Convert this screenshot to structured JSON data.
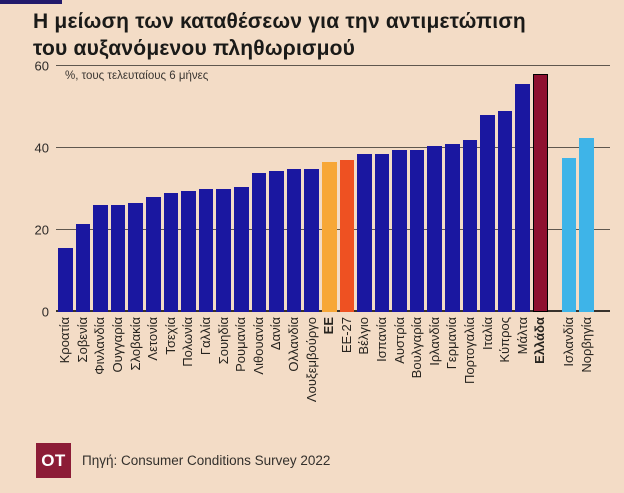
{
  "title": {
    "line1": "Η μείωση των καταθέσεων για την αντιμετώπιση",
    "line2": "του αυξανόμενου πληθωρισμού"
  },
  "chart_data": {
    "type": "bar",
    "subtitle": "%, τους τελευταίους 6 μήνες",
    "ylim": [
      0,
      60
    ],
    "yticks": [
      0,
      20,
      40,
      60
    ],
    "grid": true,
    "colors": {
      "eu-member": "#1a17a0",
      "eu-aggregate": "#f7a737",
      "eu27-aggregate": "#ee5122",
      "greece": "#8e1030",
      "non-eu": "#3eb4e8"
    },
    "greece_outline_color": "#000000",
    "bars": [
      {
        "label": "Κροατία",
        "value": 15.5,
        "group": "eu-member"
      },
      {
        "label": "Σοβενία",
        "value": 21.5,
        "group": "eu-member"
      },
      {
        "label": "Φινλανδία",
        "value": 26,
        "group": "eu-member"
      },
      {
        "label": "Ουγγαρία",
        "value": 26,
        "group": "eu-member"
      },
      {
        "label": "Σλοβακία",
        "value": 26.5,
        "group": "eu-member"
      },
      {
        "label": "Λετονία",
        "value": 28,
        "group": "eu-member"
      },
      {
        "label": "Τσεχία",
        "value": 29,
        "group": "eu-member"
      },
      {
        "label": "Πολωνία",
        "value": 29.5,
        "group": "eu-member"
      },
      {
        "label": "Γαλλία",
        "value": 30,
        "group": "eu-member"
      },
      {
        "label": "Σουηδία",
        "value": 30,
        "group": "eu-member"
      },
      {
        "label": "Ρουμανία",
        "value": 30.5,
        "group": "eu-member"
      },
      {
        "label": "Λιθουανία",
        "value": 34,
        "group": "eu-member"
      },
      {
        "label": "Δανία",
        "value": 34.5,
        "group": "eu-member"
      },
      {
        "label": "Ολλανδία",
        "value": 35,
        "group": "eu-member"
      },
      {
        "label": "Λουξεμβούργο",
        "value": 35,
        "group": "eu-member"
      },
      {
        "label": "ΕΕ",
        "value": 36.5,
        "group": "eu-aggregate",
        "bold": true
      },
      {
        "label": "ΕΕ-27",
        "value": 37,
        "group": "eu27-aggregate"
      },
      {
        "label": "Βέλγιο",
        "value": 38.5,
        "group": "eu-member"
      },
      {
        "label": "Ισπανία",
        "value": 38.5,
        "group": "eu-member"
      },
      {
        "label": "Αυστρία",
        "value": 39.5,
        "group": "eu-member"
      },
      {
        "label": "Βουλγαρία",
        "value": 39.5,
        "group": "eu-member"
      },
      {
        "label": "Ιρλανδία",
        "value": 40.5,
        "group": "eu-member"
      },
      {
        "label": "Γερμανία",
        "value": 41,
        "group": "eu-member"
      },
      {
        "label": "Πορτογαλία",
        "value": 42,
        "group": "eu-member"
      },
      {
        "label": "Ιταλία",
        "value": 48,
        "group": "eu-member"
      },
      {
        "label": "Κύπρος",
        "value": 49,
        "group": "eu-member"
      },
      {
        "label": "Μάλτα",
        "value": 55.5,
        "group": "eu-member"
      },
      {
        "label": "Ελλάδα",
        "value": 58,
        "group": "greece",
        "bold": true
      },
      {
        "label": "Ισλανδία",
        "value": 37.5,
        "group": "non-eu",
        "gap_before": true
      },
      {
        "label": "Νορβηγία",
        "value": 42.5,
        "group": "non-eu"
      }
    ]
  },
  "footer": {
    "logo_text": "OT",
    "source": "Πηγή: Consumer Conditions Survey 2022"
  },
  "accent_color": "#221a6b",
  "background_color": "#f3dcc6"
}
